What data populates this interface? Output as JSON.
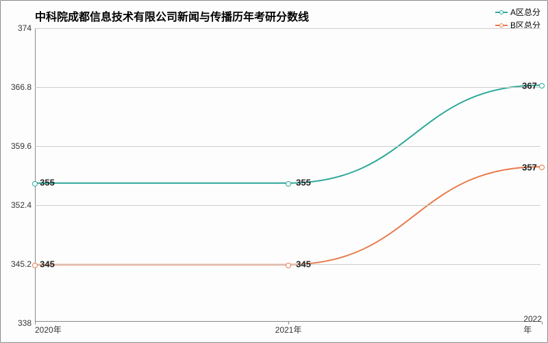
{
  "chart": {
    "type": "line",
    "title": "中科院成都信息技术有限公司新闻与传播历年考研分数线",
    "title_fontsize": 16,
    "background_color": "#fdfdfd",
    "border_color": "#888888",
    "grid_color": "#cccccc",
    "text_color": "#333333",
    "ylim": [
      338,
      374
    ],
    "yticks": [
      338,
      345.2,
      352.4,
      359.6,
      366.8,
      374
    ],
    "xcategories": [
      "2020年",
      "2021年",
      "2022年"
    ],
    "series": [
      {
        "name": "A区总分",
        "color": "#2ca89a",
        "values": [
          355,
          355,
          367
        ],
        "line_width": 2
      },
      {
        "name": "B区总分",
        "color": "#e87b4c",
        "values": [
          345,
          345,
          357
        ],
        "line_width": 2
      }
    ],
    "legend_position": "top-right",
    "label_fontsize": 13,
    "tick_fontsize": 12
  }
}
